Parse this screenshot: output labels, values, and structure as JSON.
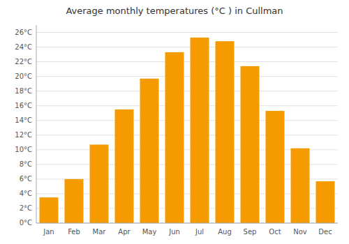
{
  "chart_data": {
    "type": "bar",
    "title": "Average monthly temperatures (°C ) in Cullman",
    "categories": [
      "Jan",
      "Feb",
      "Mar",
      "Apr",
      "May",
      "Jun",
      "Jul",
      "Aug",
      "Sep",
      "Oct",
      "Nov",
      "Dec"
    ],
    "values": [
      3.5,
      6.0,
      10.7,
      15.5,
      19.7,
      23.3,
      25.3,
      24.8,
      21.4,
      15.3,
      10.2,
      5.7
    ],
    "color": "#f59b00",
    "ylim": [
      0,
      27
    ],
    "yticks": [
      {
        "value": 0,
        "label": "0°C"
      },
      {
        "value": 2,
        "label": "2°C"
      },
      {
        "value": 4,
        "label": "4°C"
      },
      {
        "value": 6,
        "label": "6°C"
      },
      {
        "value": 8,
        "label": "8°C"
      },
      {
        "value": 10,
        "label": "10°C"
      },
      {
        "value": 12,
        "label": "12°C"
      },
      {
        "value": 14,
        "label": "14°C"
      },
      {
        "value": 16,
        "label": "16°C"
      },
      {
        "value": 18,
        "label": "18°C"
      },
      {
        "value": 20,
        "label": "20°C"
      },
      {
        "value": 22,
        "label": "22°C"
      },
      {
        "value": 24,
        "label": "24°C"
      },
      {
        "value": 26,
        "label": "26°C"
      }
    ],
    "grid": true
  }
}
